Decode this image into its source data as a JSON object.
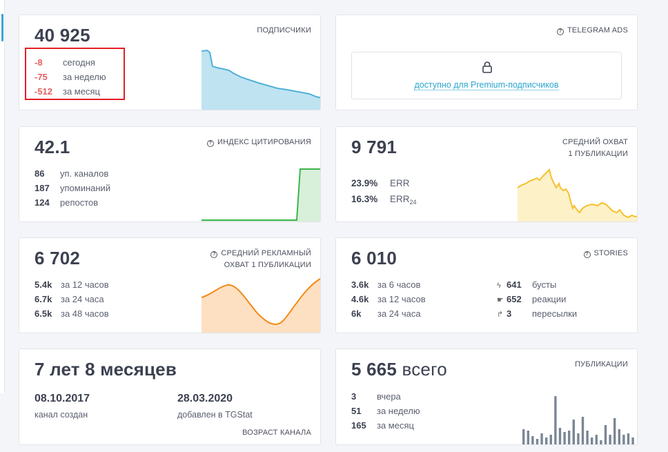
{
  "subscribers": {
    "value": "40 925",
    "label": "подписчики",
    "changes": [
      {
        "value": "-8",
        "text": "сегодня"
      },
      {
        "value": "-75",
        "text": "за неделю"
      },
      {
        "value": "-512",
        "text": "за месяц"
      }
    ]
  },
  "ads": {
    "label": "Telegram Ads",
    "link": "доступно для Premium-подписчиков"
  },
  "citation": {
    "value": "42.1",
    "label": "индекс цитирования",
    "rows": [
      {
        "value": "86",
        "text": "уп. каналов"
      },
      {
        "value": "187",
        "text": "упоминаний"
      },
      {
        "value": "124",
        "text": "репостов"
      }
    ]
  },
  "reach": {
    "value": "9 791",
    "label_line1": "Средний охват",
    "label_line2": "1 публикации",
    "err_value": "23.9%",
    "err_text": "ERR",
    "err24_value": "16.3%",
    "err24_text": "ERR",
    "err24_sub": "24"
  },
  "adreach": {
    "value": "6 702",
    "label_line1": "Средний рекламный",
    "label_line2": "охват 1 публикации",
    "rows": [
      {
        "value": "5.4k",
        "text": "за 12 часов"
      },
      {
        "value": "6.7k",
        "text": "за 24 часа"
      },
      {
        "value": "6.5k",
        "text": "за 48 часов"
      }
    ]
  },
  "stories": {
    "value": "6 010",
    "label": "Stories",
    "rows": [
      {
        "value": "3.6k",
        "text": "за 6 часов"
      },
      {
        "value": "4.6k",
        "text": "за 12 часов"
      },
      {
        "value": "6k",
        "text": "за 24 часа"
      }
    ],
    "stats": [
      {
        "icon": "bolt-icon",
        "value": "641",
        "text": "бусты"
      },
      {
        "icon": "thumbs-up-icon",
        "value": "652",
        "text": "реакции"
      },
      {
        "icon": "share-arrow-icon",
        "value": "3",
        "text": "пересылки"
      }
    ]
  },
  "age": {
    "value": "7 лет 8 месяцев",
    "created_date": "08.10.2017",
    "created_label": "канал создан",
    "added_date": "28.03.2020",
    "added_label": "добавлен в TGStat",
    "label": "Возраст канала"
  },
  "publications": {
    "value": "5 665",
    "suffix": "всего",
    "label": "публикации",
    "rows": [
      {
        "value": "3",
        "text": "вчера"
      },
      {
        "value": "51",
        "text": "за неделю"
      },
      {
        "value": "165",
        "text": "за месяц"
      }
    ]
  },
  "colors": {
    "accent": "#2aa5cf",
    "negative": "#e26060",
    "subscribers_chart": "#6fc1df",
    "citation_chart": "#3bb54a",
    "reach_chart": "#f5c02c",
    "adreach_chart": "#f28a18",
    "publications_bars": "#7a8694"
  }
}
